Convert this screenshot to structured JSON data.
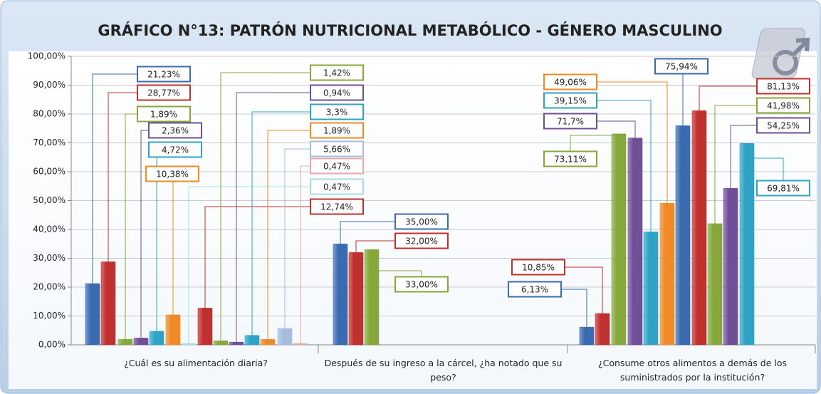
{
  "chart_data": {
    "type": "bar",
    "title": "GRÁFICO N°13: PATRÓN NUTRICIONAL METABÓLICO - GÉNERO MASCULINO",
    "categories": [
      "¿Cuál es su alimentación diaria?",
      "Después de su ingreso a la cárcel, ¿ha notado que su peso?",
      "¿Consume otros alimentos a demás de los suministrados por la institución?"
    ],
    "groups": [
      {
        "values": [
          21.23,
          28.77,
          1.89,
          2.36,
          4.72,
          10.38,
          0.47,
          12.74,
          1.42,
          0.94,
          3.3,
          1.89,
          5.66,
          0.47
        ],
        "value_labels": [
          "21,23%",
          "28,77%",
          "1,89%",
          "2,36%",
          "4,72%",
          "10,38%",
          "0,47%",
          "12,74%",
          "1,42%",
          "0,94%",
          "3,3%",
          "1,89%",
          "5,66%",
          "0,47%"
        ],
        "colors": [
          "#3a6bb0",
          "#c0302f",
          "#86a83a",
          "#6f4f97",
          "#2fa3c6",
          "#ef8a26",
          "#a9dbe6",
          "#c0302f",
          "#86a83a",
          "#6f4f97",
          "#2fa3c6",
          "#ef8a26",
          "#a5bcdc",
          "#e8a8a6"
        ]
      },
      {
        "values": [
          35,
          32,
          33
        ],
        "value_labels": [
          "35,00%",
          "32,00%",
          "33,00%"
        ],
        "colors": [
          "#3a6bb0",
          "#c0302f",
          "#86a83a"
        ]
      },
      {
        "values": [
          6.13,
          10.85,
          73.11,
          71.7,
          39.15,
          49.06,
          75.94,
          81.13,
          41.98,
          54.25,
          69.81
        ],
        "value_labels": [
          "6,13%",
          "10,85%",
          "73,11%",
          "71,7%",
          "39,15%",
          "49,06%",
          "75,94%",
          "81,13%",
          "41,98%",
          "54,25%",
          "69,81%"
        ],
        "colors": [
          "#3a6bb0",
          "#c0302f",
          "#86a83a",
          "#6f4f97",
          "#2fa3c6",
          "#ef8a26",
          "#3a6bb0",
          "#c0302f",
          "#86a83a",
          "#6f4f97",
          "#2fa3c6"
        ]
      }
    ],
    "ylim": [
      0,
      100
    ],
    "yticks": [
      {
        "value": 0,
        "label": "0,00%"
      },
      {
        "value": 10,
        "label": "10,00%"
      },
      {
        "value": 20,
        "label": "20,00%"
      },
      {
        "value": 30,
        "label": "30,00%"
      },
      {
        "value": 40,
        "label": "40,00%"
      },
      {
        "value": 50,
        "label": "50,00%"
      },
      {
        "value": 60,
        "label": "60,00%"
      },
      {
        "value": 70,
        "label": "70,00%"
      },
      {
        "value": 80,
        "label": "80,00%"
      },
      {
        "value": 90,
        "label": "90,00%"
      },
      {
        "value": 100,
        "label": "100,00%"
      }
    ],
    "grid": true
  }
}
